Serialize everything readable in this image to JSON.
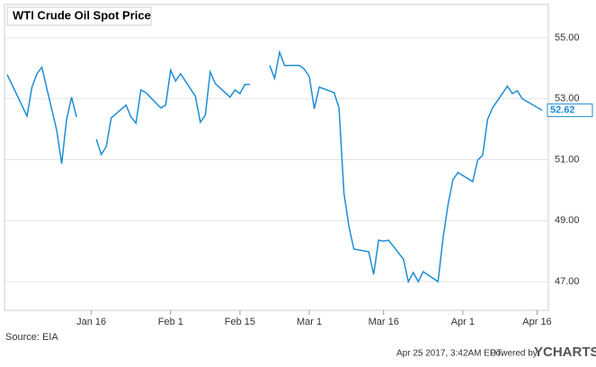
{
  "chart_data": {
    "type": "line",
    "title": "WTI Crude Oil Spot Price",
    "x": [
      "Dec 30",
      "Jan 3",
      "Jan 4",
      "Jan 5",
      "Jan 6",
      "Jan 9",
      "Jan 10",
      "Jan 11",
      "Jan 12",
      "Jan 13",
      "Jan 16",
      "Jan 17",
      "Jan 18",
      "Jan 19",
      "Jan 20",
      "Jan 23",
      "Jan 24",
      "Jan 25",
      "Jan 26",
      "Jan 27",
      "Jan 30",
      "Jan 31",
      "Feb 1",
      "Feb 2",
      "Feb 3",
      "Feb 6",
      "Feb 7",
      "Feb 8",
      "Feb 9",
      "Feb 10",
      "Feb 13",
      "Feb 14",
      "Feb 15",
      "Feb 16",
      "Feb 17",
      "Feb 20",
      "Feb 21",
      "Feb 22",
      "Feb 23",
      "Feb 24",
      "Feb 27",
      "Feb 28",
      "Mar 1",
      "Mar 2",
      "Mar 3",
      "Mar 6",
      "Mar 7",
      "Mar 8",
      "Mar 9",
      "Mar 10",
      "Mar 13",
      "Mar 14",
      "Mar 15",
      "Mar 16",
      "Mar 17",
      "Mar 20",
      "Mar 21",
      "Mar 22",
      "Mar 23",
      "Mar 24",
      "Mar 27",
      "Mar 28",
      "Mar 29",
      "Mar 30",
      "Mar 31",
      "Apr 3",
      "Apr 4",
      "Apr 5",
      "Apr 6",
      "Apr 7",
      "Apr 10",
      "Apr 11",
      "Apr 12",
      "Apr 13",
      "Apr 17"
    ],
    "series": [
      {
        "color": "#1f8dd6",
        "values": [
          53.79,
          52.43,
          53.38,
          53.82,
          54.03,
          51.96,
          50.87,
          52.32,
          53.05,
          52.4,
          null,
          51.67,
          51.17,
          51.43,
          52.37,
          52.79,
          52.4,
          52.2,
          53.29,
          53.2,
          52.7,
          52.79,
          53.94,
          53.58,
          53.82,
          53.08,
          52.23,
          52.46,
          53.88,
          53.5,
          53.05,
          53.29,
          53.17,
          53.47,
          53.47,
          null,
          54.09,
          53.67,
          54.53,
          54.09,
          54.09,
          53.97,
          53.73,
          52.67,
          53.38,
          53.2,
          52.7,
          49.9,
          48.81,
          48.07,
          47.98,
          47.24,
          48.36,
          48.33,
          48.36,
          47.74,
          47.0,
          47.3,
          47.0,
          47.33,
          47.0,
          48.42,
          49.51,
          50.34,
          50.58,
          50.28,
          50.99,
          51.14,
          52.32,
          52.7,
          53.41,
          53.17,
          53.26,
          53.0,
          52.62
        ],
        "value_labels": [
          null,
          null,
          null,
          null,
          null,
          null,
          null,
          null,
          null,
          null,
          null,
          null,
          null,
          null,
          null,
          null,
          null,
          null,
          null,
          null,
          null,
          null,
          null,
          null,
          null,
          null,
          null,
          null,
          null,
          null,
          null,
          null,
          null,
          null,
          null,
          null,
          null,
          null,
          null,
          null,
          null,
          null,
          null,
          null,
          null,
          null,
          null,
          null,
          null,
          null,
          null,
          null,
          null,
          null,
          null,
          null,
          null,
          null,
          null,
          null,
          null,
          null,
          null,
          null,
          null,
          null,
          null,
          null,
          null,
          null,
          null,
          null,
          null,
          null,
          "52.62"
        ]
      }
    ],
    "xlim": [
      "Dec 30",
      "Apr 17"
    ],
    "xticks": [
      "Jan 16",
      "Feb 1",
      "Feb 15",
      "Mar 1",
      "Mar 16",
      "Apr 1",
      "Apr 16"
    ],
    "ylim": [
      46.06,
      56.09
    ],
    "yticks": [
      {
        "value": 47,
        "label": "47.00"
      },
      {
        "value": 49,
        "label": "49.00"
      },
      {
        "value": 51,
        "label": "51.00"
      },
      {
        "value": 53,
        "label": "53.00"
      },
      {
        "value": 55,
        "label": "55.00"
      }
    ],
    "grid": true,
    "source": "Source: EIA",
    "timestamp": "Apr 25 2017, 3:42AM EDT.",
    "powered_by": "Powered by",
    "brand": "YCHARTS"
  }
}
